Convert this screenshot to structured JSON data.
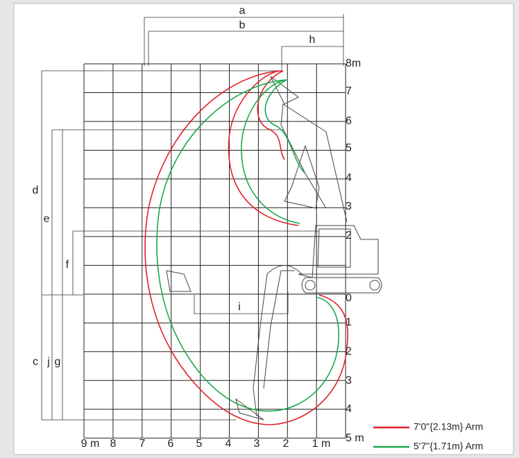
{
  "dimensions": {
    "a": "a",
    "b": "b",
    "h": "h",
    "d": "d",
    "e": "e",
    "f": "f",
    "c": "c",
    "j": "j",
    "g": "g",
    "i": "i"
  },
  "x_axis": [
    "9 m",
    "8",
    "7",
    "6",
    "5",
    "4",
    "3",
    "2",
    "1 m"
  ],
  "y_axis": [
    "8m",
    "7",
    "6",
    "5",
    "4",
    "3",
    "2",
    "0",
    "1",
    "2",
    "3",
    "4",
    "5 m"
  ],
  "legend": [
    {
      "label": "7'0\"{2.13m} Arm",
      "color": "#e0202a"
    },
    {
      "label": "5'7\"{1.71m} Arm",
      "color": "#1aa84c"
    }
  ]
}
